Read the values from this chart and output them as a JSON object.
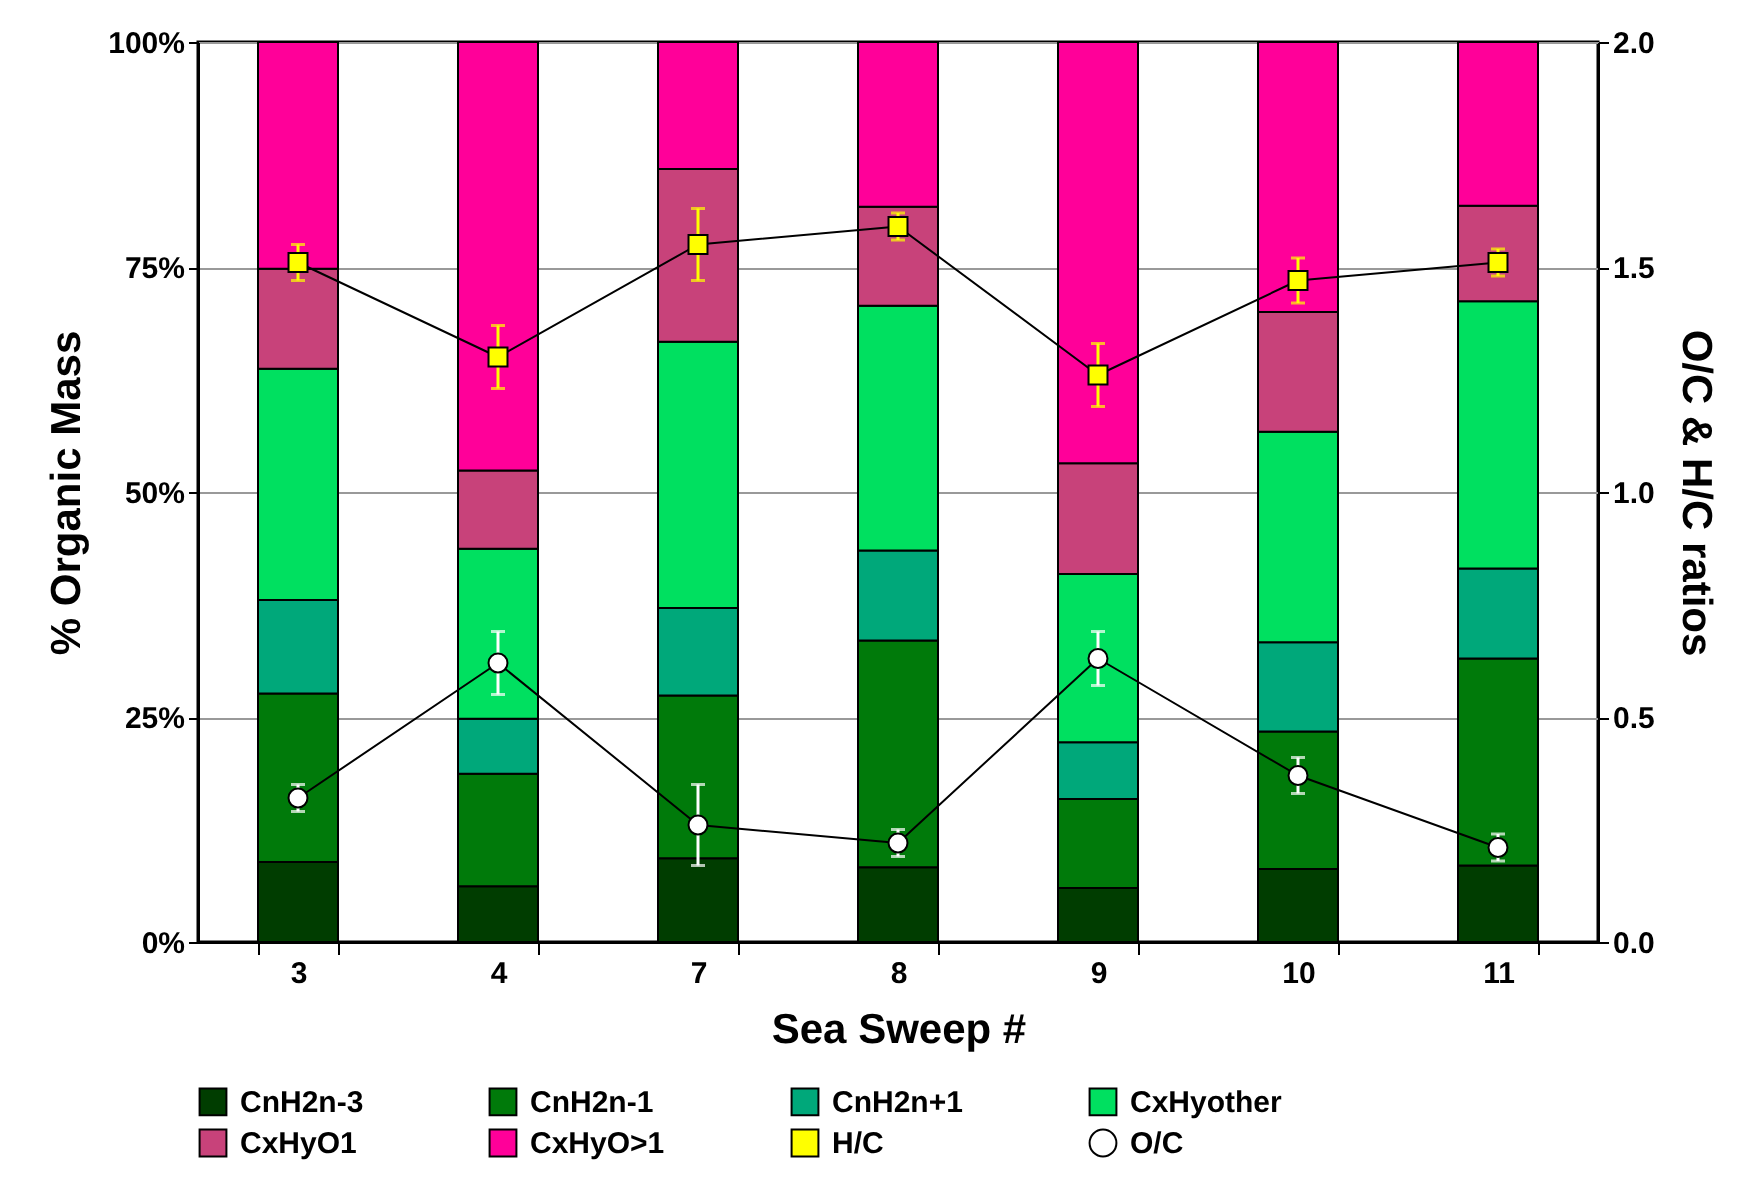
{
  "chart_data": {
    "type": "bar",
    "xlabel": "Sea Sweep #",
    "ylabel": "% Organic Mass",
    "y2label": "O/C & H/C ratios",
    "categories": [
      "3",
      "4",
      "7",
      "8",
      "9",
      "10",
      "11"
    ],
    "stacked": true,
    "ylim": [
      0,
      100
    ],
    "yticks": [
      {
        "value": 0,
        "label": "0%"
      },
      {
        "value": 25,
        "label": "25%"
      },
      {
        "value": 50,
        "label": "50%"
      },
      {
        "value": 75,
        "label": "75%"
      },
      {
        "value": 100,
        "label": "100%"
      }
    ],
    "y2lim": [
      0,
      2
    ],
    "y2ticks": [
      {
        "value": 0,
        "label": "0.0"
      },
      {
        "value": 0.5,
        "label": "0.5"
      },
      {
        "value": 1,
        "label": "1.0"
      },
      {
        "value": 1.5,
        "label": "1.5"
      },
      {
        "value": 2,
        "label": "2.0"
      }
    ],
    "grid": "y",
    "legend": "bottom",
    "series": [
      {
        "name": "CnH2n-3",
        "color": "#003d00",
        "values": [
          8.9,
          6.2,
          9.3,
          8.3,
          6.0,
          8.1,
          8.5
        ]
      },
      {
        "name": "CnH2n-1",
        "color": "#007a0a",
        "values": [
          18.7,
          12.5,
          18.1,
          25.2,
          9.9,
          15.3,
          23.0
        ]
      },
      {
        "name": "CnH2n+1",
        "color": "#00a87a",
        "values": [
          10.4,
          6.1,
          9.7,
          10.0,
          6.3,
          9.9,
          10.0
        ]
      },
      {
        "name": "CxHyother",
        "color": "#00e060",
        "values": [
          25.7,
          18.9,
          29.6,
          27.2,
          18.7,
          23.4,
          29.7
        ]
      },
      {
        "name": "CxHyO1",
        "color": "#c8427a",
        "values": [
          11.1,
          8.7,
          19.2,
          11.0,
          12.3,
          13.3,
          10.6
        ]
      },
      {
        "name": "CxHyO>1",
        "color": "#ff0099",
        "values": [
          25.2,
          47.6,
          14.1,
          18.3,
          46.8,
          30.0,
          18.2
        ]
      },
      {
        "name": "H/C",
        "type": "line",
        "axis": "y2",
        "marker": "square",
        "color": "#ffff00",
        "values": [
          1.51,
          1.3,
          1.55,
          1.59,
          1.26,
          1.47,
          1.51
        ],
        "errors": [
          0.04,
          0.07,
          0.08,
          0.03,
          0.07,
          0.05,
          0.03
        ]
      },
      {
        "name": "O/C",
        "type": "line",
        "axis": "y2",
        "marker": "circle",
        "color": "#ffffff",
        "values": [
          0.32,
          0.62,
          0.26,
          0.22,
          0.63,
          0.37,
          0.21
        ],
        "errors": [
          0.03,
          0.07,
          0.09,
          0.03,
          0.06,
          0.04,
          0.03
        ]
      }
    ]
  }
}
